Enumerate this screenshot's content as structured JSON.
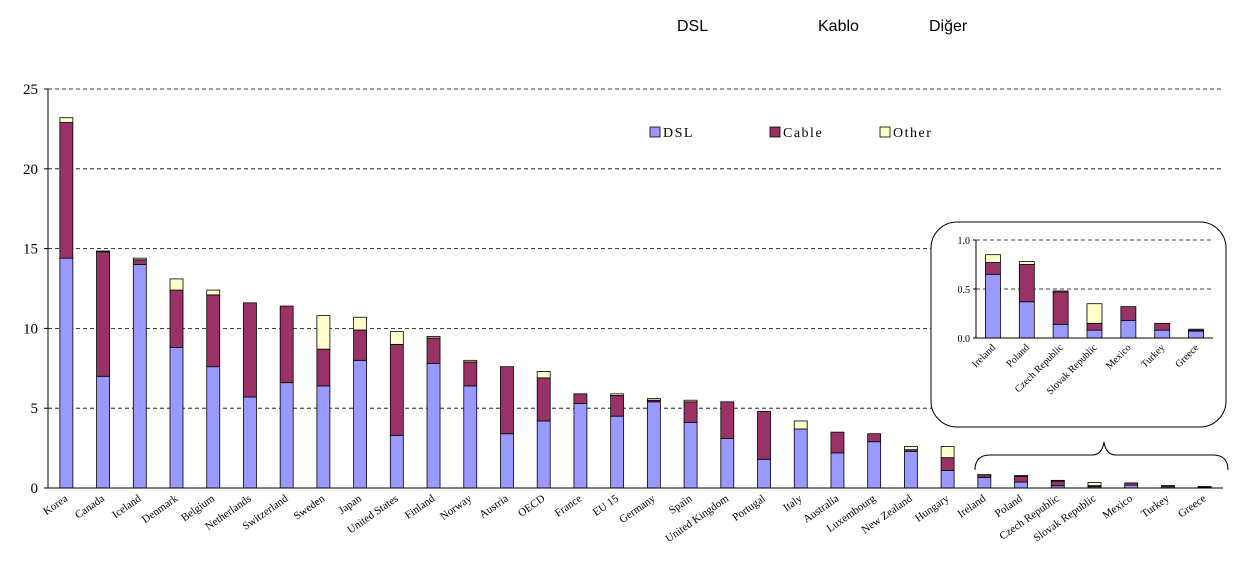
{
  "header_labels": {
    "dsl": "DSL",
    "cable": "Kablo",
    "other": "Diğer"
  },
  "chart_data": [
    {
      "type": "bar",
      "stacked": true,
      "categories": [
        "Korea",
        "Canada",
        "Iceland",
        "Denmark",
        "Belgium",
        "Netherlands",
        "Switzerland",
        "Sweden",
        "Japan",
        "United States",
        "Finland",
        "Norway",
        "Austria",
        "OECD",
        "France",
        "EU 15",
        "Germany",
        "Spain",
        "United Kingdom",
        "Portugal",
        "Italy",
        "Australia",
        "Luxembourg",
        "New Zealand",
        "Hungary",
        "Ireland",
        "Poland",
        "Czech Republic",
        "Slovak Republic",
        "Mexico",
        "Turkey",
        "Greece"
      ],
      "series": [
        {
          "name": "DSL",
          "color": "#9999ff",
          "values": [
            14.4,
            7.0,
            14.0,
            8.8,
            7.6,
            5.7,
            6.6,
            6.4,
            8.0,
            3.3,
            7.8,
            6.4,
            3.4,
            4.2,
            5.3,
            4.5,
            5.4,
            4.1,
            3.1,
            1.8,
            3.7,
            2.2,
            2.9,
            2.3,
            1.1,
            0.65,
            0.37,
            0.14,
            0.08,
            0.18,
            0.08,
            0.07
          ]
        },
        {
          "name": "Cable",
          "color": "#993366",
          "values": [
            8.5,
            7.8,
            0.3,
            3.6,
            4.5,
            5.9,
            4.8,
            2.3,
            1.9,
            5.7,
            1.6,
            1.5,
            4.2,
            2.7,
            0.6,
            1.3,
            0.1,
            1.3,
            2.3,
            3.0,
            0.0,
            1.3,
            0.5,
            0.1,
            0.8,
            0.12,
            0.38,
            0.33,
            0.07,
            0.14,
            0.07,
            0.01
          ]
        },
        {
          "name": "Other",
          "color": "#ffffcc",
          "values": [
            0.3,
            0.05,
            0.1,
            0.7,
            0.3,
            0.0,
            0.0,
            2.1,
            0.8,
            0.8,
            0.1,
            0.1,
            0.0,
            0.4,
            0.0,
            0.1,
            0.1,
            0.1,
            0.0,
            0.0,
            0.5,
            0.0,
            0.0,
            0.2,
            0.7,
            0.08,
            0.03,
            0.01,
            0.2,
            0.0,
            0.0,
            0.01
          ]
        }
      ],
      "ylim": [
        0,
        25
      ],
      "yticks": [
        0,
        5,
        10,
        15,
        20,
        25
      ],
      "grid": true,
      "legend_position": "top-right",
      "xlabel": "",
      "ylabel": ""
    },
    {
      "type": "bar",
      "stacked": true,
      "inset": true,
      "categories": [
        "Ireland",
        "Poland",
        "Czech Republic",
        "Slovak Republic",
        "Mexico",
        "Turkey",
        "Greece"
      ],
      "series": [
        {
          "name": "DSL",
          "color": "#9999ff",
          "values": [
            0.65,
            0.37,
            0.14,
            0.08,
            0.18,
            0.08,
            0.07
          ]
        },
        {
          "name": "Cable",
          "color": "#993366",
          "values": [
            0.12,
            0.38,
            0.33,
            0.07,
            0.14,
            0.07,
            0.01
          ]
        },
        {
          "name": "Other",
          "color": "#ffffcc",
          "values": [
            0.08,
            0.03,
            0.01,
            0.2,
            0.0,
            0.0,
            0.01
          ]
        }
      ],
      "ylim": [
        0,
        1.0
      ],
      "yticks": [
        "0.0",
        "0.5",
        "1.0"
      ],
      "grid": true
    }
  ]
}
